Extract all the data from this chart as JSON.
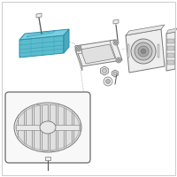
{
  "bg_color": "#ffffff",
  "border_color": "#cccccc",
  "line_color": "#555555",
  "highlight_color": "#5bbcce",
  "highlight_edge": "#2a8fa8",
  "highlight_top": "#7acfe0",
  "part_fill": "#eeeeee",
  "part_fill2": "#e0e0e0",
  "part_edge": "#777777",
  "part_edge_dark": "#555555",
  "fig_width": 2.0,
  "fig_height": 2.0,
  "dpi": 100
}
